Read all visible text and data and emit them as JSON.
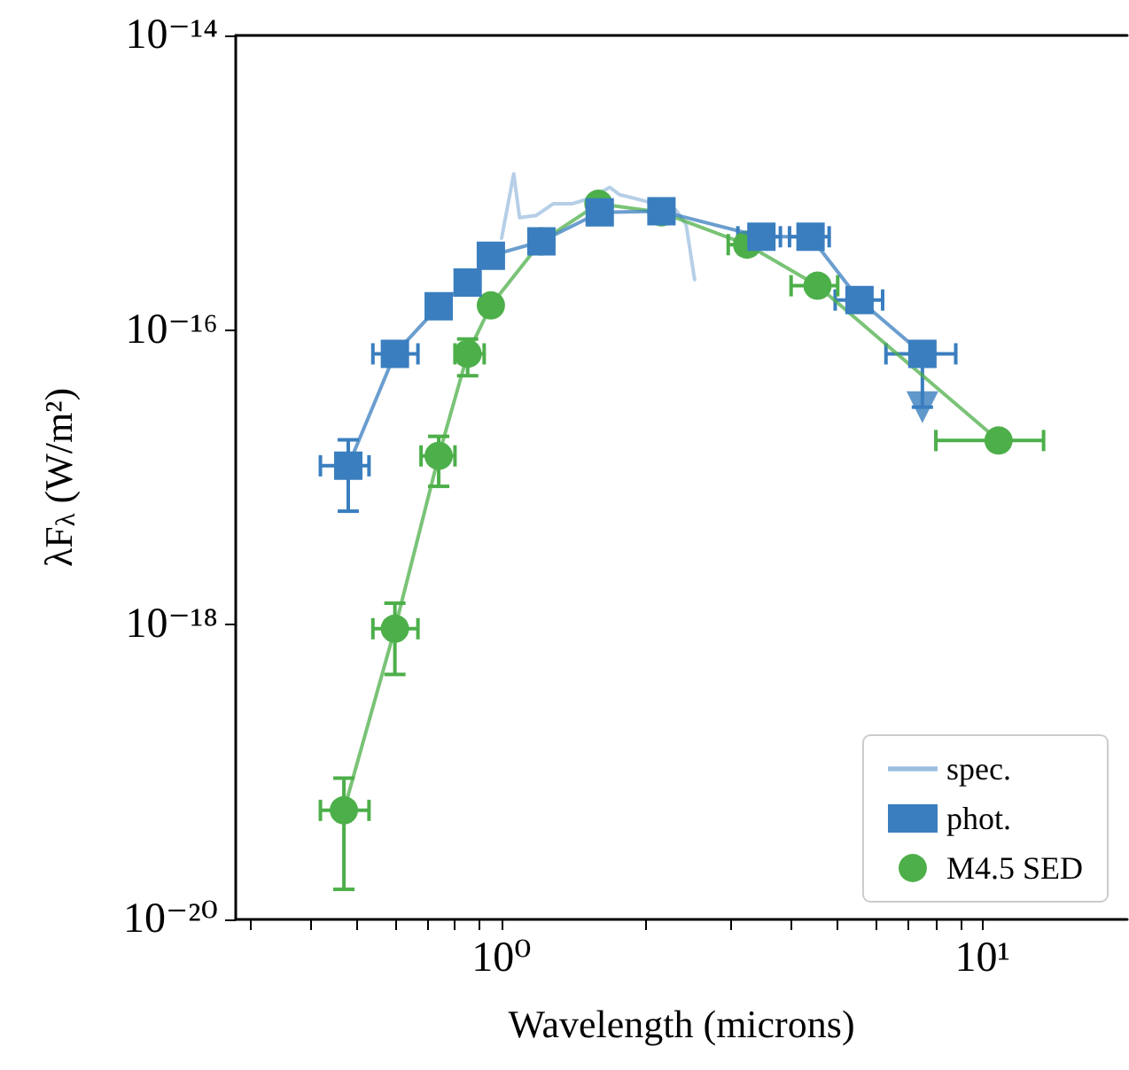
{
  "chart_data": {
    "type": "line",
    "xlabel": "Wavelength (microns)",
    "ylabel": "λF$_{λ}$ (W/m²)",
    "log": "xy",
    "xlim": [
      0.28,
      20
    ],
    "ylim": [
      1e-20,
      1e-14
    ],
    "xticks": [
      {
        "value": 0.3,
        "label": null
      },
      {
        "value": 0.4,
        "label": null
      },
      {
        "value": 0.5,
        "label": null
      },
      {
        "value": 0.6,
        "label": null
      },
      {
        "value": 0.7,
        "label": null
      },
      {
        "value": 0.8,
        "label": null
      },
      {
        "value": 0.9,
        "label": null
      },
      {
        "value": 1,
        "label": "10⁰"
      },
      {
        "value": 2,
        "label": null
      },
      {
        "value": 3,
        "label": null
      },
      {
        "value": 4,
        "label": null
      },
      {
        "value": 5,
        "label": null
      },
      {
        "value": 6,
        "label": null
      },
      {
        "value": 7,
        "label": null
      },
      {
        "value": 8,
        "label": null
      },
      {
        "value": 9,
        "label": null
      },
      {
        "value": 10,
        "label": "10¹"
      }
    ],
    "yticks": [
      {
        "value": 1e-20,
        "label": "10⁻²⁰"
      },
      {
        "value": 1e-18,
        "label": "10⁻¹⁸"
      },
      {
        "value": 1e-16,
        "label": "10⁻¹⁶"
      },
      {
        "value": 1e-14,
        "label": "10⁻¹⁴"
      }
    ],
    "grid": false,
    "legend": "bottom right",
    "series": [
      {
        "name": "spec.",
        "color": "#9dbfdf",
        "marker": "none",
        "x": [
          1.0,
          1.06,
          1.09,
          1.18,
          1.28,
          1.4,
          1.52,
          1.68,
          1.76,
          1.96,
          2.3,
          2.42,
          2.52
        ],
        "values": [
          4.2e-16,
          1.15e-15,
          5.8e-16,
          6e-16,
          7.2e-16,
          7.2e-16,
          7.8e-16,
          9.3e-16,
          8.3e-16,
          7.6e-16,
          6.6e-16,
          5.2e-16,
          2.2e-16
        ]
      },
      {
        "name": "phot.",
        "color": "#3a7ebf",
        "marker": "square",
        "x": [
          0.48,
          0.6,
          0.74,
          0.85,
          0.95,
          1.21,
          1.6,
          2.15,
          3.47,
          4.39,
          5.55,
          7.5
        ],
        "values": [
          1.2e-17,
          6.9e-17,
          1.45e-16,
          2.1e-16,
          3.2e-16,
          4e-16,
          6.3e-16,
          6.4e-16,
          4.3e-16,
          4.3e-16,
          1.6e-16,
          6.9e-17
        ],
        "errors": [
          [
            5.9e-18,
            1.8e-17
          ],
          null,
          null,
          null,
          null,
          null,
          null,
          null,
          null,
          null,
          null,
          [
            3e-17,
            6.9e-17
          ]
        ],
        "xerrors": [
          [
            0.42,
            0.53
          ],
          [
            0.54,
            0.67
          ],
          null,
          null,
          null,
          null,
          null,
          null,
          [
            3.1,
            3.8
          ],
          [
            3.97,
            4.8
          ],
          [
            4.94,
            6.2
          ],
          [
            6.3,
            8.8
          ]
        ]
      },
      {
        "type": "scatter",
        "color": "#3a7ebf",
        "marker": "triangle",
        "x": [
          7.5
        ],
        "values": [
          3e-17
        ]
      },
      {
        "name": "M4.5 SED",
        "color": "#4daf4a",
        "marker": "circle",
        "x": [
          0.47,
          0.6,
          0.74,
          0.85,
          0.95,
          1.21,
          1.59,
          2.15,
          3.24,
          4.54,
          10.8
        ],
        "values": [
          5.5e-20,
          9.4e-19,
          1.4e-17,
          6.9e-17,
          1.47e-16,
          4e-16,
          7.2e-16,
          6.3e-16,
          3.8e-16,
          2e-16,
          1.78e-17
        ],
        "errors": [
          [
            1.6e-20,
            9.1e-20
          ],
          [
            4.6e-19,
            1.4e-18
          ],
          [
            8.7e-18,
            1.9e-17
          ],
          [
            4.9e-17,
            8.7e-17
          ],
          null,
          null,
          null,
          null,
          null,
          null,
          null
        ],
        "xerrors": [
          [
            0.42,
            0.53
          ],
          [
            0.54,
            0.67
          ],
          [
            0.68,
            0.8
          ],
          [
            0.8,
            0.92
          ],
          null,
          null,
          null,
          null,
          [
            2.96,
            3.24
          ],
          [
            4.0,
            5.0
          ],
          [
            8.0,
            13.4
          ]
        ]
      }
    ]
  }
}
